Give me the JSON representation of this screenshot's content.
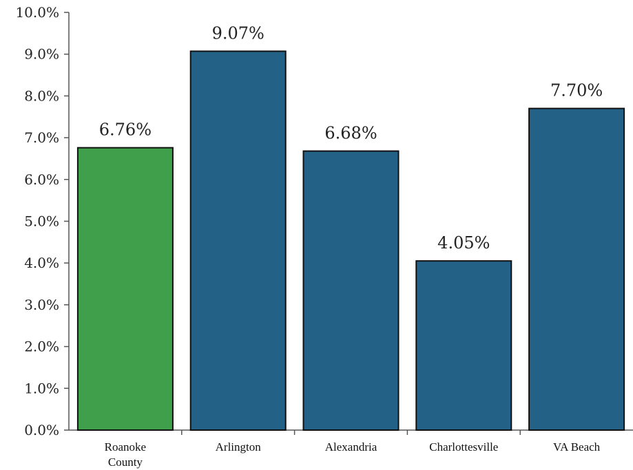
{
  "chart_data": {
    "type": "bar",
    "title": "",
    "xlabel": "",
    "ylabel": "",
    "categories": [
      "Roanoke County",
      "Arlington",
      "Alexandria",
      "Charlottesville",
      "VA Beach"
    ],
    "values": [
      6.76,
      9.07,
      6.68,
      4.05,
      7.7
    ],
    "data_labels": [
      "6.76%",
      "9.07%",
      "6.68%",
      "4.05%",
      "7.70%"
    ],
    "ylim": [
      0,
      10
    ],
    "yticks": [
      0,
      1,
      2,
      3,
      4,
      5,
      6,
      7,
      8,
      9,
      10
    ],
    "ytick_labels": [
      "0.0%",
      "1.0%",
      "2.0%",
      "3.0%",
      "4.0%",
      "5.0%",
      "6.0%",
      "7.0%",
      "8.0%",
      "9.0%",
      "10.0%"
    ],
    "grid": false,
    "legend": "none",
    "colors": {
      "highlight": "#3f9f4a",
      "default": "#246187"
    },
    "highlight_index": 0
  }
}
